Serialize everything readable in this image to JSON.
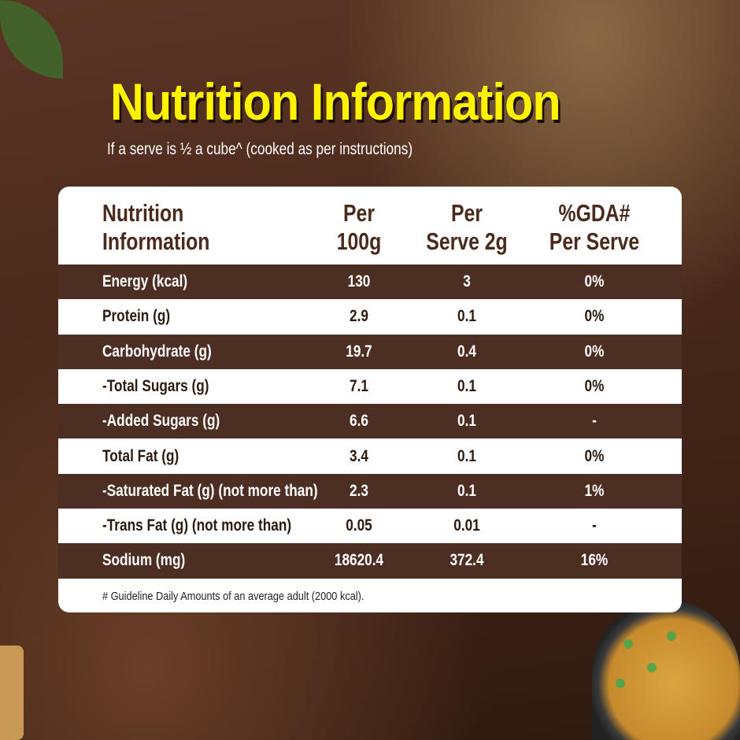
{
  "title": "Nutrition Information",
  "subtitle": "If a serve is ½ a cube^ (cooked as per instructions)",
  "table": {
    "headers": [
      [
        "Nutrition",
        "Information"
      ],
      [
        "Per",
        "100g"
      ],
      [
        "Per",
        "Serve 2g"
      ],
      [
        "%GDA#",
        "Per Serve"
      ]
    ],
    "rows": [
      [
        "Energy (kcal)",
        "130",
        "3",
        "0%"
      ],
      [
        "Protein (g)",
        "2.9",
        "0.1",
        "0%"
      ],
      [
        "Carbohydrate (g)",
        "19.7",
        "0.4",
        "0%"
      ],
      [
        "-Total Sugars (g)",
        "7.1",
        "0.1",
        "0%"
      ],
      [
        "-Added Sugars (g)",
        "6.6",
        "0.1",
        "-"
      ],
      [
        "Total Fat (g)",
        "3.4",
        "0.1",
        "0%"
      ],
      [
        "-Saturated Fat (g) (not more than)",
        "2.3",
        "0.1",
        "1%"
      ],
      [
        "-Trans Fat (g) (not more than)",
        "0.05",
        "0.01",
        "-"
      ],
      [
        "Sodium (mg)",
        "18620.4",
        "372.4",
        "16%"
      ]
    ],
    "footnote": "# Guideline Daily Amounts of an average adult (2000 kcal)."
  },
  "colors": {
    "title": "#fff200",
    "row_dark": "#4d2e22",
    "header_text": "#4a2a1c"
  }
}
